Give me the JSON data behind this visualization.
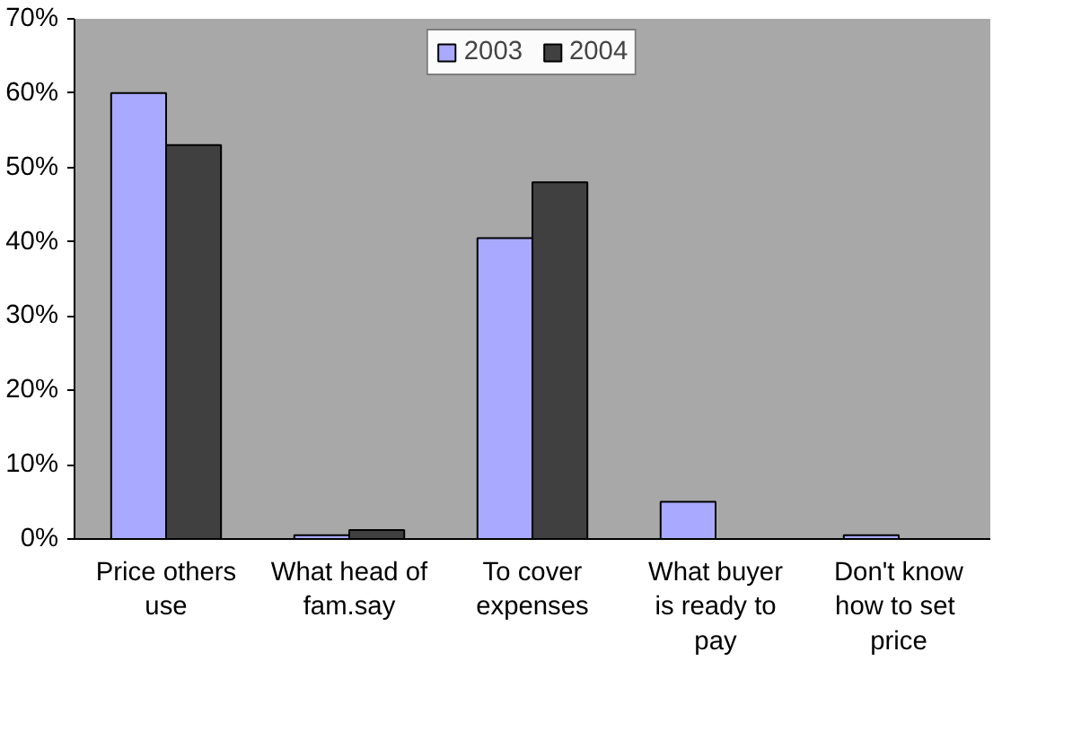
{
  "chart_data": {
    "type": "bar",
    "categories": [
      "Price others use",
      "What head of fam.say",
      "To cover expenses",
      "What buyer is ready to pay",
      "Don't know how  to set price"
    ],
    "series": [
      {
        "name": "2003",
        "color": "#a9a9ff",
        "values": [
          60,
          0.5,
          40.5,
          5,
          0.5
        ]
      },
      {
        "name": "2004",
        "color": "#404040",
        "values": [
          53,
          1.2,
          48,
          null,
          null
        ]
      }
    ],
    "ylim": [
      0,
      70
    ],
    "yticks": [
      {
        "value": 0,
        "label": "0%"
      },
      {
        "value": 10,
        "label": "10%"
      },
      {
        "value": 20,
        "label": "20%"
      },
      {
        "value": 30,
        "label": "30%"
      },
      {
        "value": 40,
        "label": "40%"
      },
      {
        "value": 50,
        "label": "50%"
      },
      {
        "value": 60,
        "label": "60%"
      },
      {
        "value": 70,
        "label": "70%"
      }
    ],
    "grid": false,
    "legend": "top"
  }
}
